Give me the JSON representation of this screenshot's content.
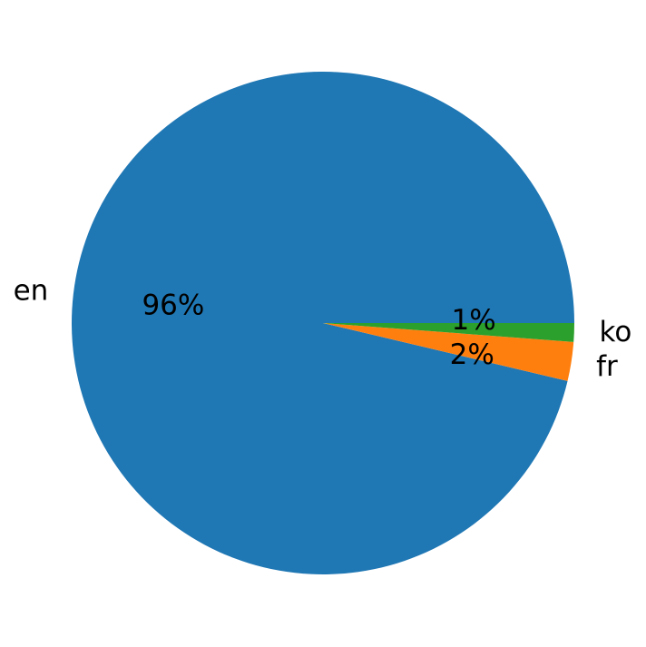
{
  "chart_data": {
    "type": "pie",
    "title": "",
    "categories": [
      "en",
      "fr",
      "ko"
    ],
    "values": [
      96.3,
      2.5,
      1.2
    ],
    "pct_labels": [
      "96%",
      "2%",
      "1%"
    ],
    "colors": [
      "#1f77b4",
      "#ff7f0e",
      "#2ca02c"
    ],
    "start_angle_deg": 0,
    "direction": "counterclockwise",
    "legend": "none"
  }
}
